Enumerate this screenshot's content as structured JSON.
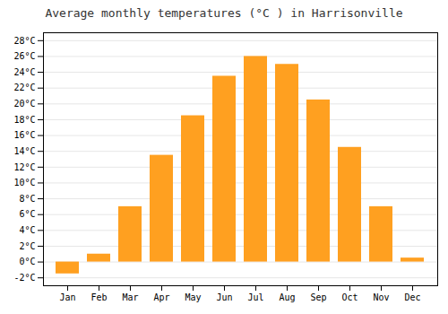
{
  "chart_data": {
    "type": "bar",
    "title": "Average monthly temperatures (°C ) in Harrisonville",
    "categories": [
      "Jan",
      "Feb",
      "Mar",
      "Apr",
      "May",
      "Jun",
      "Jul",
      "Aug",
      "Sep",
      "Oct",
      "Nov",
      "Dec"
    ],
    "values": [
      -1.5,
      1.0,
      7.0,
      13.5,
      18.5,
      23.5,
      26.0,
      25.0,
      20.5,
      14.5,
      7.0,
      0.5
    ],
    "color": "#FFA020",
    "ylim": [
      -3,
      29
    ],
    "yticks": [
      {
        "value": -2,
        "label": "-2°C"
      },
      {
        "value": 0,
        "label": "0°C"
      },
      {
        "value": 2,
        "label": "2°C"
      },
      {
        "value": 4,
        "label": "4°C"
      },
      {
        "value": 6,
        "label": "6°C"
      },
      {
        "value": 8,
        "label": "8°C"
      },
      {
        "value": 10,
        "label": "10°C"
      },
      {
        "value": 12,
        "label": "12°C"
      },
      {
        "value": 14,
        "label": "14°C"
      },
      {
        "value": 16,
        "label": "16°C"
      },
      {
        "value": 18,
        "label": "18°C"
      },
      {
        "value": 20,
        "label": "20°C"
      },
      {
        "value": 22,
        "label": "22°C"
      },
      {
        "value": 24,
        "label": "24°C"
      },
      {
        "value": 26,
        "label": "26°C"
      },
      {
        "value": 28,
        "label": "28°C"
      }
    ],
    "grid": true
  }
}
